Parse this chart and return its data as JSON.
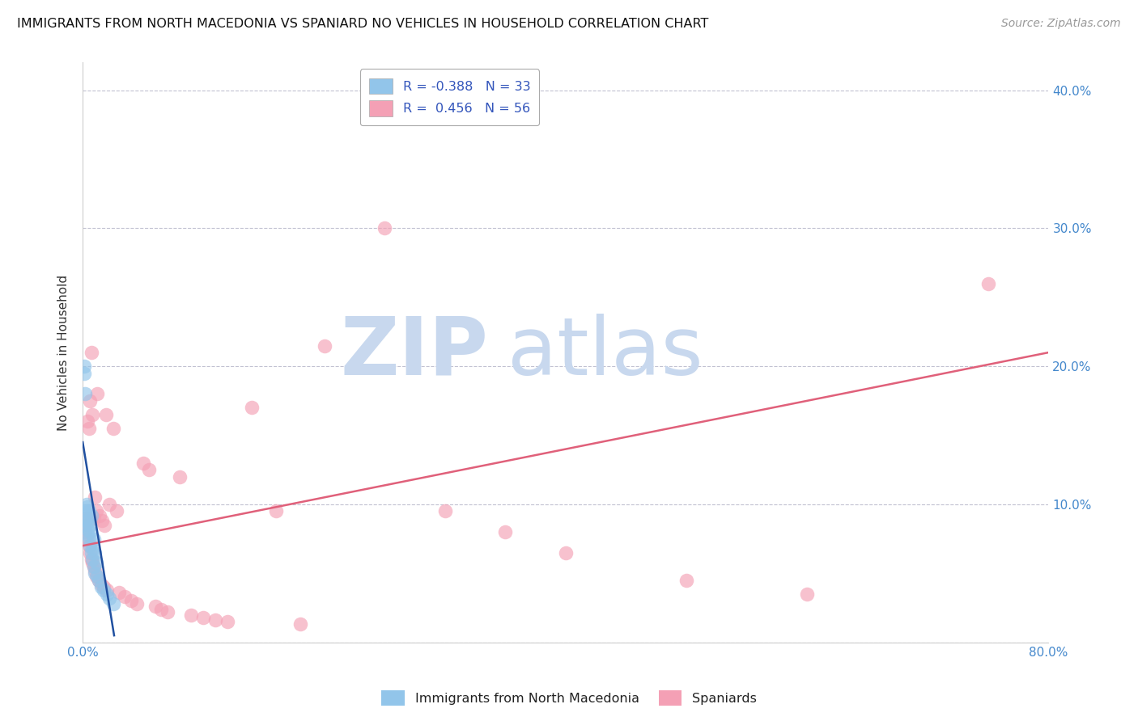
{
  "title": "IMMIGRANTS FROM NORTH MACEDONIA VS SPANIARD NO VEHICLES IN HOUSEHOLD CORRELATION CHART",
  "source": "Source: ZipAtlas.com",
  "ylabel": "No Vehicles in Household",
  "xlim": [
    0.0,
    0.8
  ],
  "ylim": [
    0.0,
    0.42
  ],
  "xticks": [
    0.0,
    0.1,
    0.2,
    0.3,
    0.4,
    0.5,
    0.6,
    0.7,
    0.8
  ],
  "yticks": [
    0.0,
    0.1,
    0.2,
    0.3,
    0.4
  ],
  "color_blue": "#92C5EA",
  "color_pink": "#F4A0B5",
  "line_blue": "#2050A0",
  "line_pink": "#E0607A",
  "watermark_color": "#C8D8EE",
  "blue_scatter_x": [
    0.001,
    0.001,
    0.002,
    0.002,
    0.002,
    0.003,
    0.003,
    0.003,
    0.004,
    0.004,
    0.004,
    0.005,
    0.005,
    0.005,
    0.006,
    0.006,
    0.006,
    0.007,
    0.007,
    0.008,
    0.008,
    0.009,
    0.009,
    0.01,
    0.01,
    0.011,
    0.012,
    0.013,
    0.015,
    0.017,
    0.02,
    0.022,
    0.025
  ],
  "blue_scatter_y": [
    0.195,
    0.2,
    0.18,
    0.09,
    0.085,
    0.1,
    0.095,
    0.088,
    0.098,
    0.082,
    0.078,
    0.095,
    0.088,
    0.075,
    0.085,
    0.08,
    0.07,
    0.092,
    0.065,
    0.068,
    0.06,
    0.075,
    0.055,
    0.065,
    0.05,
    0.058,
    0.048,
    0.045,
    0.04,
    0.038,
    0.035,
    0.032,
    0.028
  ],
  "pink_scatter_x": [
    0.001,
    0.002,
    0.003,
    0.004,
    0.004,
    0.005,
    0.005,
    0.006,
    0.006,
    0.007,
    0.007,
    0.008,
    0.008,
    0.009,
    0.009,
    0.01,
    0.01,
    0.011,
    0.011,
    0.012,
    0.013,
    0.014,
    0.015,
    0.016,
    0.017,
    0.018,
    0.019,
    0.02,
    0.022,
    0.025,
    0.028,
    0.03,
    0.035,
    0.04,
    0.045,
    0.05,
    0.055,
    0.06,
    0.065,
    0.07,
    0.08,
    0.09,
    0.1,
    0.11,
    0.12,
    0.14,
    0.16,
    0.18,
    0.2,
    0.25,
    0.3,
    0.35,
    0.4,
    0.5,
    0.6,
    0.75
  ],
  "pink_scatter_y": [
    0.085,
    0.08,
    0.09,
    0.075,
    0.16,
    0.07,
    0.155,
    0.065,
    0.175,
    0.06,
    0.21,
    0.058,
    0.165,
    0.055,
    0.09,
    0.052,
    0.105,
    0.048,
    0.095,
    0.18,
    0.045,
    0.092,
    0.042,
    0.088,
    0.04,
    0.085,
    0.165,
    0.038,
    0.1,
    0.155,
    0.095,
    0.036,
    0.033,
    0.03,
    0.028,
    0.13,
    0.125,
    0.026,
    0.024,
    0.022,
    0.12,
    0.02,
    0.018,
    0.016,
    0.015,
    0.17,
    0.095,
    0.013,
    0.215,
    0.3,
    0.095,
    0.08,
    0.065,
    0.045,
    0.035,
    0.26
  ],
  "pink_line_x0": 0.0,
  "pink_line_y0": 0.07,
  "pink_line_x1": 0.8,
  "pink_line_y1": 0.21,
  "blue_line_x0": 0.0,
  "blue_line_y0": 0.145,
  "blue_line_x1": 0.026,
  "blue_line_y1": 0.005
}
